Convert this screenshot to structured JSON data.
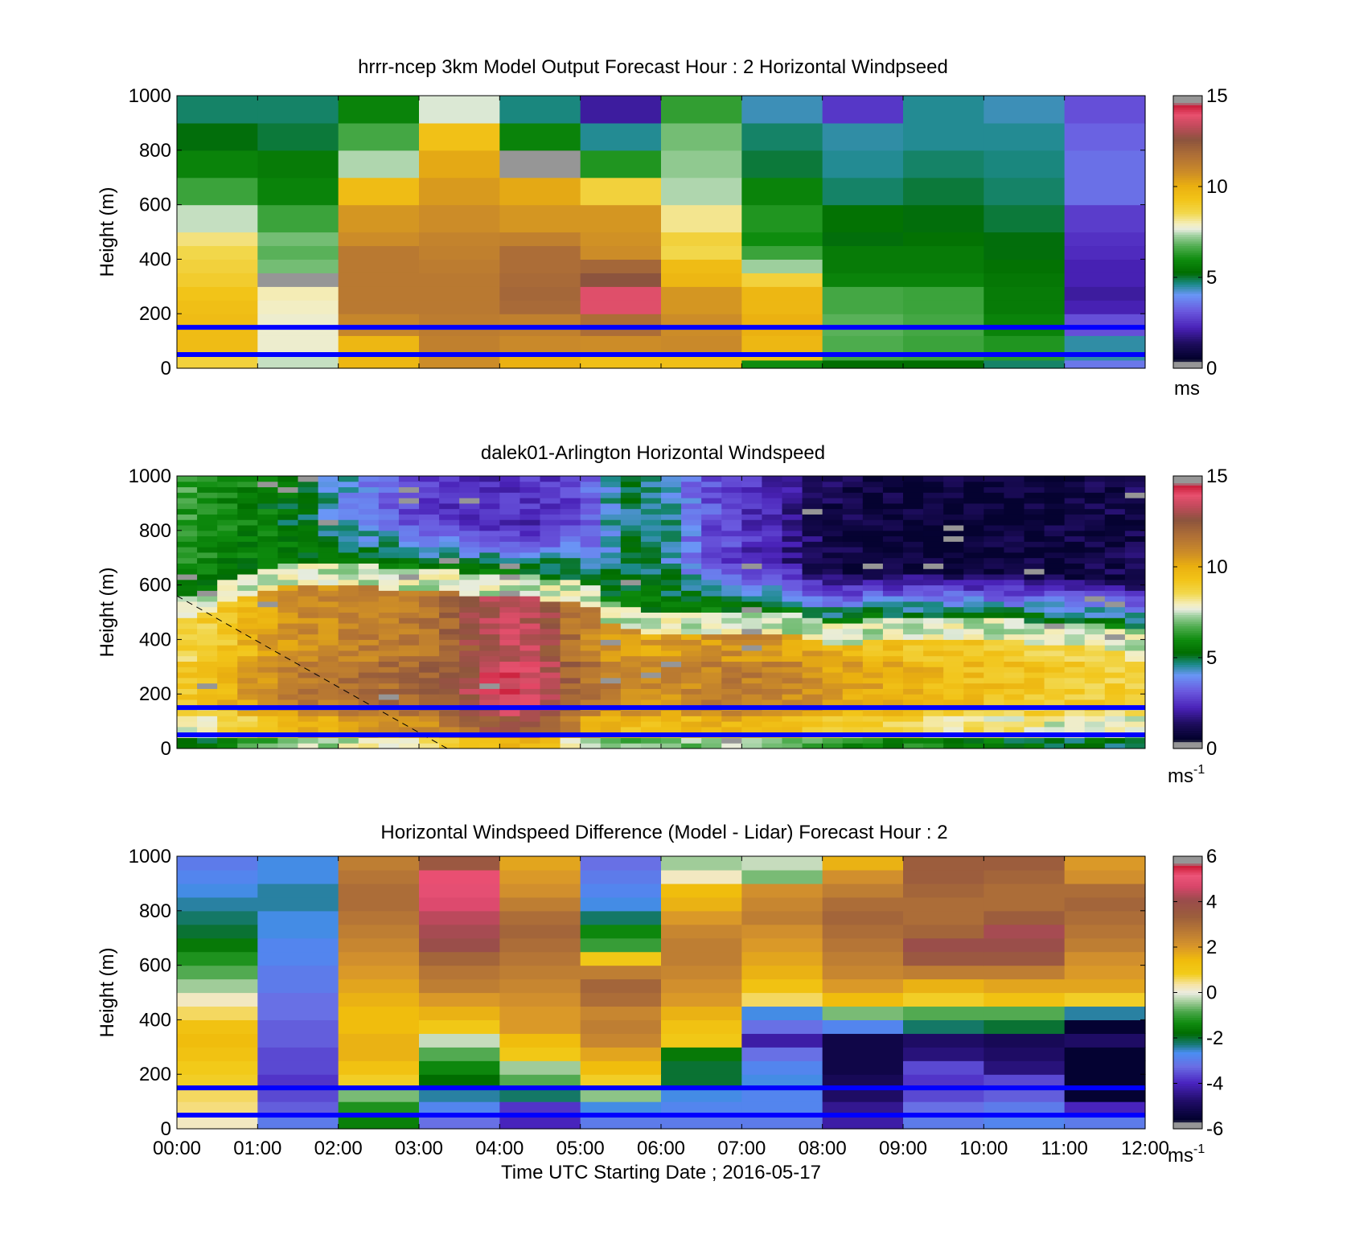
{
  "figure": {
    "xlabel": "Time UTC  Starting Date ; 2016-05-17",
    "x_tick_labels": [
      "00:00",
      "01:00",
      "02:00",
      "03:00",
      "04:00",
      "05:00",
      "06:00",
      "07:00",
      "08:00",
      "09:00",
      "10:00",
      "11:00",
      "12:00"
    ]
  },
  "colors": {
    "reference_line": "#0000ff",
    "dashed_line": "#000000",
    "missing": "#969696"
  },
  "chart_data": [
    {
      "type": "heatmap",
      "title": "hrrr-ncep 3km Model Output   Forecast Hour : 2 Horizontal Windpseed",
      "ylabel": "Height (m)",
      "xlim": [
        0,
        12
      ],
      "ylim": [
        0,
        1000
      ],
      "y_ticks": [
        0,
        200,
        400,
        600,
        800,
        1000
      ],
      "colorbar": {
        "min": 0,
        "max": 15,
        "ticks": [
          0,
          5,
          10,
          15
        ],
        "unit": "ms",
        "unit_sup": ""
      },
      "reference_lines_m": [
        50,
        150
      ],
      "x_hours": [
        0,
        1,
        2,
        3,
        4,
        5,
        6,
        7,
        8,
        9,
        10,
        11
      ],
      "y_edges_m": [
        0,
        30,
        60,
        120,
        200,
        250,
        300,
        350,
        400,
        450,
        500,
        600,
        700,
        800,
        900,
        1000
      ],
      "values": [
        [
          8.8,
          7.5,
          9.8,
          10.8,
          10.0,
          9.5,
          9.5,
          6.0,
          5.3,
          5.3,
          4.8,
          3.6
        ],
        [
          8.8,
          7.5,
          9.8,
          10.8,
          10.0,
          9.5,
          9.5,
          9.4,
          6.6,
          6.5,
          6.3,
          4.5
        ],
        [
          9.6,
          7.8,
          9.8,
          11.2,
          10.9,
          10.8,
          10.9,
          9.8,
          6.7,
          6.5,
          6.2,
          4.5
        ],
        [
          9.6,
          7.8,
          11.0,
          11.3,
          11.2,
          11.8,
          10.8,
          10.0,
          6.8,
          6.6,
          5.8,
          3.0
        ],
        [
          9.5,
          7.9,
          11.4,
          11.4,
          11.9,
          13.8,
          10.6,
          9.8,
          6.6,
          6.5,
          5.6,
          2.2
        ],
        [
          9.3,
          8.0,
          11.4,
          11.4,
          12.0,
          13.8,
          10.6,
          9.8,
          6.6,
          6.5,
          5.6,
          2.0
        ],
        [
          9.0,
          0.0,
          11.4,
          11.4,
          11.9,
          12.6,
          9.8,
          8.8,
          5.8,
          5.8,
          5.5,
          2.2
        ],
        [
          8.8,
          7.0,
          11.4,
          11.3,
          11.8,
          12.0,
          9.6,
          7.3,
          5.6,
          5.6,
          5.4,
          2.2
        ],
        [
          8.6,
          6.8,
          11.4,
          11.2,
          11.8,
          10.8,
          8.6,
          6.5,
          5.6,
          5.6,
          5.2,
          2.4
        ],
        [
          8.3,
          7.0,
          10.8,
          11.1,
          11.2,
          10.7,
          8.8,
          6.0,
          5.2,
          5.4,
          5.2,
          2.5
        ],
        [
          7.5,
          6.5,
          10.6,
          10.8,
          10.6,
          10.6,
          8.2,
          6.2,
          5.4,
          5.2,
          5.0,
          2.7
        ],
        [
          6.5,
          5.8,
          9.6,
          10.5,
          10.2,
          8.8,
          7.4,
          5.8,
          4.8,
          5.0,
          4.8,
          3.5
        ],
        [
          5.8,
          5.6,
          7.4,
          10.2,
          0.0,
          6.2,
          7.2,
          5.0,
          4.6,
          4.8,
          4.7,
          3.5
        ],
        [
          5.2,
          5.0,
          6.6,
          9.4,
          5.8,
          4.6,
          7.0,
          4.8,
          4.5,
          4.6,
          4.6,
          3.3
        ],
        [
          4.8,
          4.8,
          5.8,
          7.6,
          4.7,
          2.0,
          6.4,
          4.4,
          2.6,
          4.6,
          4.4,
          3.0
        ]
      ]
    },
    {
      "type": "heatmap",
      "title": "dalek01-Arlington  Horizontal Windspeed",
      "ylabel": "Height (m)",
      "xlim": [
        0,
        12
      ],
      "ylim": [
        0,
        1000
      ],
      "y_ticks": [
        0,
        200,
        400,
        600,
        800,
        1000
      ],
      "colorbar": {
        "min": 0,
        "max": 15,
        "ticks": [
          0,
          5,
          10,
          15
        ],
        "unit": "ms",
        "unit_sup": "-1"
      },
      "reference_lines_m": [
        50,
        150
      ],
      "dashed_line": {
        "from": [
          0,
          560
        ],
        "to": [
          3.35,
          0
        ]
      },
      "time_step_h": 0.25,
      "height_step_m": 20,
      "profile_knots_h": [
        0,
        0.5,
        1,
        1.5,
        2,
        2.5,
        3,
        3.5,
        4,
        4.5,
        5,
        5.5,
        6,
        6.5,
        7,
        7.5,
        8,
        8.5,
        9,
        9.5,
        10,
        10.5,
        11,
        11.5,
        11.75
      ],
      "jet_top_m": [
        520,
        560,
        620,
        650,
        640,
        630,
        620,
        610,
        600,
        590,
        580,
        480,
        460,
        470,
        460,
        470,
        420,
        430,
        440,
        440,
        440,
        430,
        420,
        410,
        400
      ],
      "low_level_speed": [
        8.5,
        9.0,
        10.0,
        10.8,
        11.0,
        11.3,
        11.4,
        12.2,
        13.5,
        13.2,
        11.2,
        10.5,
        10.2,
        10.6,
        10.8,
        10.6,
        10.0,
        9.6,
        9.4,
        9.2,
        9.0,
        8.8,
        8.6,
        8.5,
        8.4
      ],
      "upper_level_speed": [
        6.5,
        6.0,
        5.8,
        5.0,
        4.4,
        3.4,
        2.8,
        2.4,
        2.3,
        2.5,
        3.0,
        4.8,
        4.8,
        3.2,
        2.6,
        2.0,
        1.2,
        0.9,
        0.8,
        0.8,
        0.7,
        0.8,
        0.9,
        1.0,
        1.1
      ]
    },
    {
      "type": "heatmap",
      "title": "Horizontal Windspeed Difference (Model - Lidar) Forecast Hour : 2",
      "ylabel": "Height (m)",
      "xlabel": "Time UTC  Starting Date ; 2016-05-17",
      "xlim": [
        0,
        12
      ],
      "ylim": [
        0,
        1000
      ],
      "y_ticks": [
        0,
        200,
        400,
        600,
        800,
        1000
      ],
      "colorbar": {
        "min": -6,
        "max": 6,
        "ticks": [
          -6,
          -4,
          -2,
          0,
          2,
          4,
          6
        ],
        "unit": "ms",
        "unit_sup": "-1"
      },
      "reference_lines_m": [
        50,
        150
      ],
      "x_hours": [
        0,
        1,
        2,
        3,
        4,
        5,
        6,
        7,
        8,
        9,
        10,
        11
      ],
      "y_edges_m": [
        0,
        50,
        100,
        150,
        200,
        250,
        300,
        350,
        400,
        450,
        500,
        550,
        600,
        650,
        700,
        750,
        800,
        850,
        900,
        950,
        1000
      ],
      "values": [
        [
          0.2,
          -3.0,
          -1.5,
          -3.2,
          -4.0,
          -3.0,
          -3.0,
          -3.0,
          -4.2,
          -3.0,
          -2.8,
          -3.0
        ],
        [
          0.5,
          -3.4,
          -1.2,
          -2.8,
          -3.8,
          -2.6,
          -2.8,
          -2.8,
          -4.4,
          -3.2,
          -3.0,
          -4.0
        ],
        [
          0.6,
          -3.6,
          -0.6,
          -2.4,
          -2.2,
          -0.5,
          -2.6,
          -2.8,
          -4.8,
          -3.6,
          -3.4,
          -5.6
        ],
        [
          0.8,
          -3.8,
          0.8,
          -1.8,
          -0.8,
          0.8,
          -2.0,
          -2.6,
          -5.0,
          -3.8,
          -3.6,
          -6.0
        ],
        [
          0.9,
          -3.6,
          1.2,
          -1.4,
          -0.4,
          1.4,
          -2.0,
          -2.8,
          -5.2,
          -3.6,
          -4.6,
          -6.0
        ],
        [
          1.2,
          -3.6,
          1.6,
          -0.8,
          1.0,
          1.8,
          -1.6,
          -3.2,
          -5.2,
          -4.6,
          -4.8,
          -6.0
        ],
        [
          1.4,
          -3.4,
          1.6,
          -0.2,
          1.4,
          2.4,
          1.0,
          -4.2,
          -5.2,
          -4.8,
          -5.0,
          -4.8
        ],
        [
          1.2,
          -3.4,
          1.4,
          1.0,
          2.0,
          2.6,
          1.2,
          -3.2,
          -2.8,
          -2.2,
          -2.0,
          -5.6
        ],
        [
          0.6,
          -3.2,
          1.4,
          1.6,
          2.0,
          2.4,
          1.6,
          -2.6,
          -0.6,
          -0.8,
          -0.8,
          -2.4
        ],
        [
          0.2,
          -3.2,
          1.6,
          2.0,
          2.2,
          3.0,
          2.0,
          0.6,
          1.4,
          0.8,
          1.2,
          0.8
        ],
        [
          -0.4,
          -3.0,
          1.8,
          2.6,
          2.4,
          3.2,
          2.2,
          1.2,
          2.0,
          1.6,
          1.8,
          1.8
        ],
        [
          -0.8,
          -3.0,
          2.0,
          2.8,
          2.6,
          2.6,
          2.4,
          1.6,
          2.4,
          2.6,
          2.6,
          2.0
        ],
        [
          -1.2,
          -2.8,
          2.2,
          3.2,
          2.8,
          1.0,
          2.6,
          1.8,
          2.6,
          3.6,
          3.6,
          2.2
        ],
        [
          -1.6,
          -2.8,
          2.4,
          4.0,
          3.0,
          -1.0,
          2.6,
          2.0,
          2.8,
          4.0,
          4.0,
          2.6
        ],
        [
          -2.0,
          -2.6,
          2.6,
          4.2,
          3.2,
          -1.4,
          2.4,
          2.2,
          3.0,
          3.2,
          4.2,
          2.8
        ],
        [
          -2.2,
          -2.6,
          2.8,
          4.4,
          3.0,
          -2.2,
          2.0,
          2.6,
          3.2,
          3.0,
          3.4,
          3.0
        ],
        [
          -2.4,
          -2.4,
          3.0,
          4.8,
          2.6,
          -2.6,
          1.6,
          2.4,
          3.0,
          3.0,
          3.0,
          3.2
        ],
        [
          -2.6,
          -2.4,
          3.0,
          5.0,
          2.2,
          -2.8,
          1.4,
          2.2,
          2.6,
          3.2,
          3.0,
          3.0
        ],
        [
          -2.8,
          -2.6,
          2.8,
          5.2,
          2.0,
          -3.0,
          0.2,
          -0.6,
          2.2,
          3.4,
          3.2,
          2.2
        ],
        [
          -3.0,
          -2.6,
          2.6,
          3.6,
          1.8,
          -3.2,
          -0.4,
          -0.2,
          1.6,
          3.4,
          3.4,
          2.0
        ]
      ]
    }
  ]
}
